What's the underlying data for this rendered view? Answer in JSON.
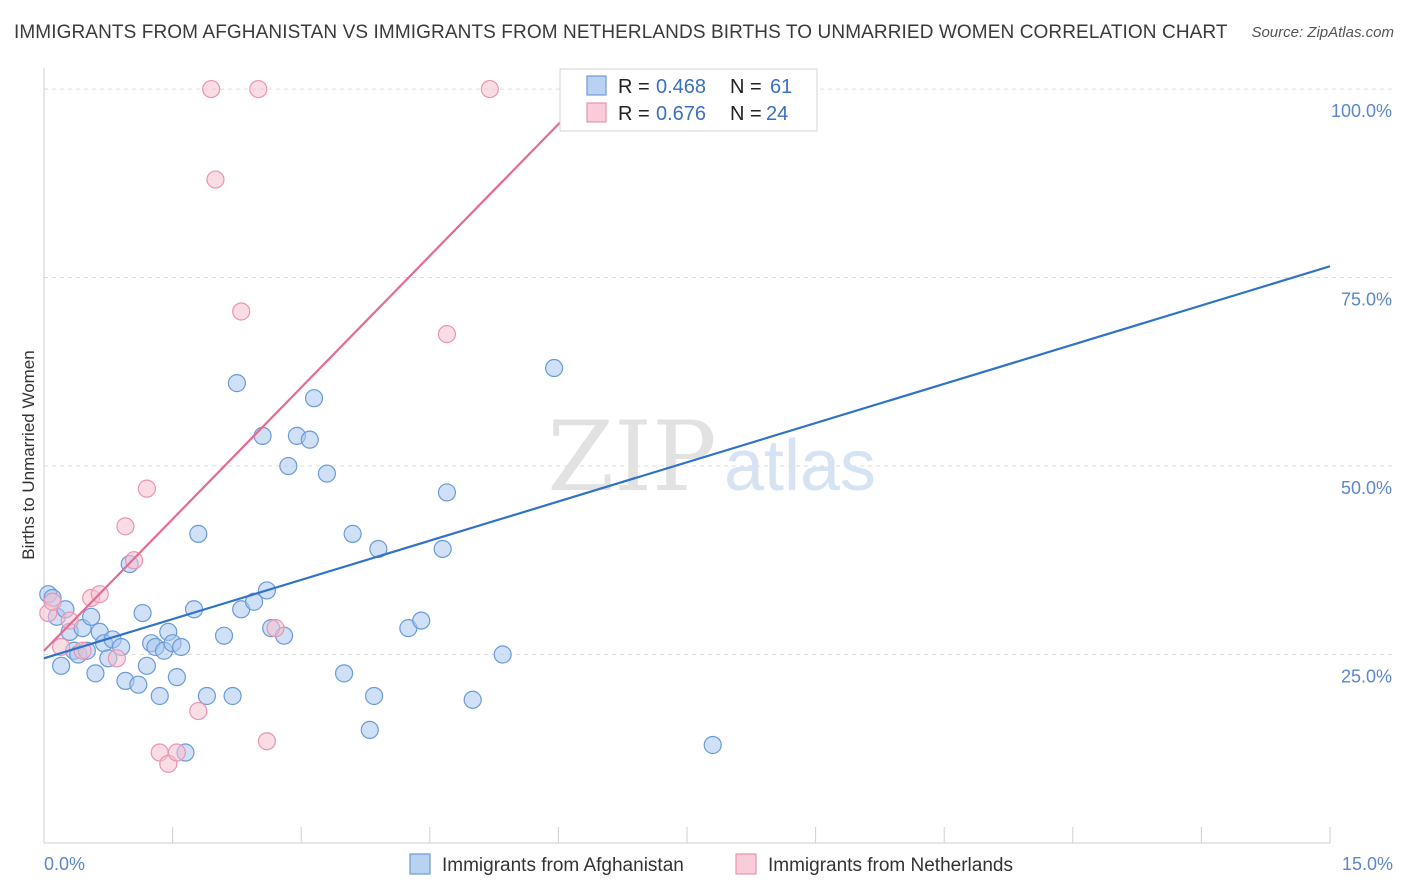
{
  "title": "IMMIGRANTS FROM AFGHANISTAN VS IMMIGRANTS FROM NETHERLANDS BIRTHS TO UNMARRIED WOMEN CORRELATION CHART",
  "source": "Source: ZipAtlas.com",
  "watermark": {
    "zip": "ZIP",
    "atlas": "atlas"
  },
  "colors": {
    "afghanistan_fill": "#a9c7ef",
    "afghanistan_stroke": "#6a9bd8",
    "afghanistan_line": "#2f72c8",
    "netherlands_fill": "#f6bfd0",
    "netherlands_stroke": "#ec94b0",
    "netherlands_line": "#e46b92",
    "tick": "#5b87c9"
  },
  "legend": {
    "afghanistan": {
      "r_label": "R =",
      "r_value": "0.468",
      "n_label": "N =",
      "n_value": "61"
    },
    "netherlands": {
      "r_label": "R =",
      "r_value": "0.676",
      "n_label": "N =",
      "n_value": "24"
    }
  },
  "chart_data": {
    "type": "scatter",
    "ylabel": "Births to Unmarried Women",
    "xlabel": "",
    "xlim": [
      0,
      15
    ],
    "ylim": [
      0,
      102
    ],
    "x_tick_labels": [
      {
        "value": 0,
        "label": "0.0%"
      },
      {
        "value": 15,
        "label": "15.0%"
      }
    ],
    "y_tick_labels": [
      {
        "value": 25,
        "label": "25.0%"
      },
      {
        "value": 50,
        "label": "50.0%"
      },
      {
        "value": 75,
        "label": "75.0%"
      },
      {
        "value": 100,
        "label": "100.0%"
      }
    ],
    "grid": true,
    "legend_placement": "top-center",
    "series": [
      {
        "name": "Immigrants from Afghanistan",
        "key": "afghanistan",
        "trend": {
          "x": [
            0,
            15
          ],
          "y": [
            24.5,
            76.5
          ]
        },
        "points": [
          [
            0.05,
            33
          ],
          [
            0.1,
            32.5
          ],
          [
            0.15,
            30
          ],
          [
            0.2,
            23.5
          ],
          [
            0.25,
            31
          ],
          [
            0.3,
            28
          ],
          [
            0.35,
            25.5
          ],
          [
            0.4,
            25
          ],
          [
            0.45,
            28.5
          ],
          [
            0.5,
            25.5
          ],
          [
            0.55,
            30
          ],
          [
            0.6,
            22.5
          ],
          [
            0.65,
            28
          ],
          [
            0.7,
            26.5
          ],
          [
            0.75,
            24.5
          ],
          [
            0.8,
            27
          ],
          [
            0.9,
            26
          ],
          [
            0.95,
            21.5
          ],
          [
            1.0,
            37
          ],
          [
            1.1,
            21
          ],
          [
            1.15,
            30.5
          ],
          [
            1.2,
            23.5
          ],
          [
            1.25,
            26.5
          ],
          [
            1.3,
            26
          ],
          [
            1.35,
            19.5
          ],
          [
            1.4,
            25.5
          ],
          [
            1.45,
            28
          ],
          [
            1.5,
            26.5
          ],
          [
            1.55,
            22
          ],
          [
            1.6,
            26
          ],
          [
            1.65,
            12
          ],
          [
            1.75,
            31
          ],
          [
            1.8,
            41
          ],
          [
            1.9,
            19.5
          ],
          [
            2.1,
            27.5
          ],
          [
            2.2,
            19.5
          ],
          [
            2.25,
            61
          ],
          [
            2.3,
            31
          ],
          [
            2.45,
            32
          ],
          [
            2.55,
            54
          ],
          [
            2.6,
            33.5
          ],
          [
            2.65,
            28.5
          ],
          [
            2.8,
            27.5
          ],
          [
            2.85,
            50
          ],
          [
            2.95,
            54
          ],
          [
            3.1,
            53.5
          ],
          [
            3.15,
            59
          ],
          [
            3.3,
            49
          ],
          [
            3.5,
            22.5
          ],
          [
            3.6,
            41
          ],
          [
            3.8,
            15
          ],
          [
            3.85,
            19.5
          ],
          [
            3.9,
            39
          ],
          [
            4.25,
            28.5
          ],
          [
            4.4,
            29.5
          ],
          [
            4.65,
            39
          ],
          [
            4.7,
            46.5
          ],
          [
            5.0,
            19
          ],
          [
            5.35,
            25
          ],
          [
            5.95,
            63
          ],
          [
            7.8,
            13
          ]
        ]
      },
      {
        "name": "Immigrants from Netherlands",
        "key": "netherlands",
        "trend": {
          "x": [
            0,
            6.4
          ],
          "y": [
            25.5,
            100
          ]
        },
        "points": [
          [
            0.05,
            30.5
          ],
          [
            0.1,
            32
          ],
          [
            0.2,
            26
          ],
          [
            0.3,
            29.5
          ],
          [
            0.45,
            25.5
          ],
          [
            0.55,
            32.5
          ],
          [
            0.65,
            33
          ],
          [
            0.85,
            24.5
          ],
          [
            0.95,
            42
          ],
          [
            1.05,
            37.5
          ],
          [
            1.2,
            47
          ],
          [
            1.35,
            12
          ],
          [
            1.45,
            10.5
          ],
          [
            1.55,
            12
          ],
          [
            1.8,
            17.5
          ],
          [
            1.95,
            100
          ],
          [
            2.0,
            88
          ],
          [
            2.3,
            70.5
          ],
          [
            2.5,
            100
          ],
          [
            2.6,
            13.5
          ],
          [
            2.7,
            28.5
          ],
          [
            4.7,
            67.5
          ],
          [
            5.2,
            100
          ],
          [
            8.8,
            100
          ]
        ]
      }
    ]
  },
  "bottom_legend": [
    {
      "key": "afghanistan",
      "label": "Immigrants from Afghanistan"
    },
    {
      "key": "netherlands",
      "label": "Immigrants from Netherlands"
    }
  ]
}
